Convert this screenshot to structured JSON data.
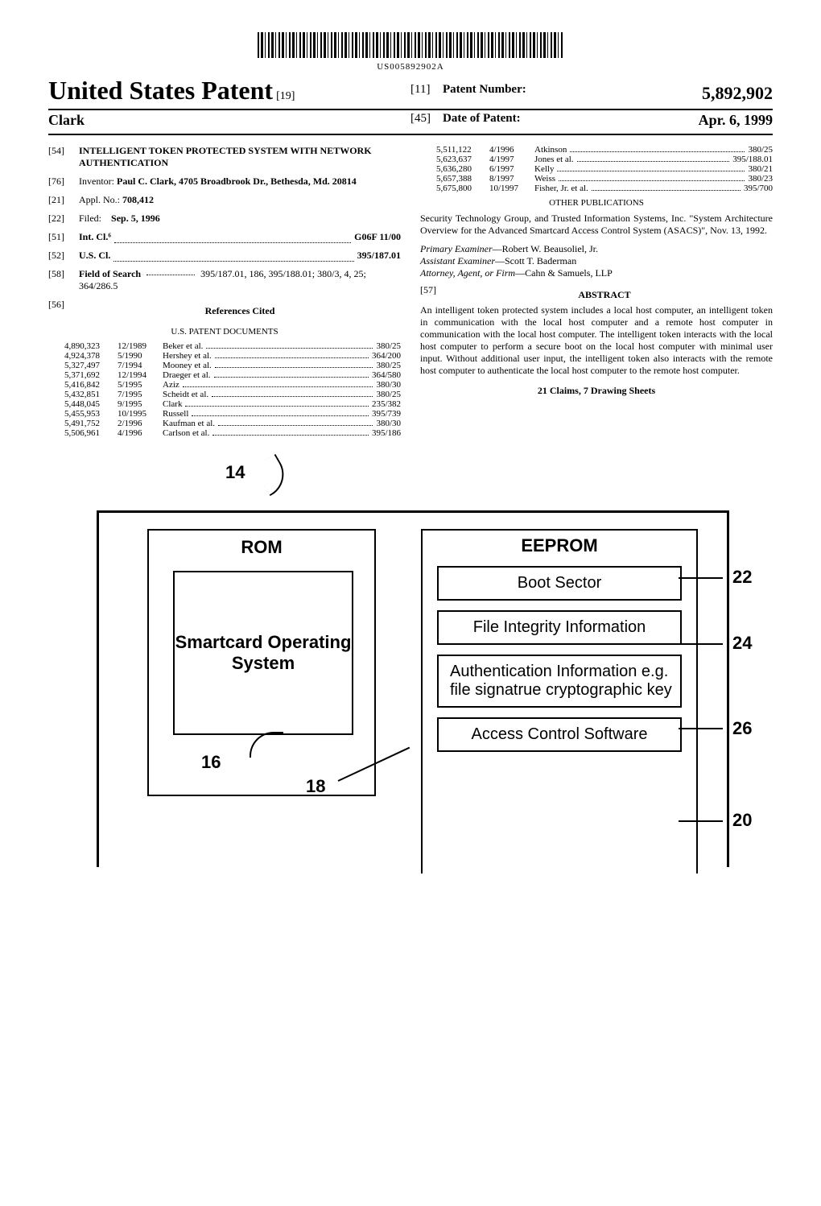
{
  "barcode_number": "US005892902A",
  "header": {
    "title": "United States Patent",
    "title_code": "[19]",
    "inventor_line": "Clark",
    "patent_number_label": "Patent Number:",
    "patent_number_code": "[11]",
    "patent_number": "5,892,902",
    "date_label": "Date of Patent:",
    "date_code": "[45]",
    "date": "Apr. 6, 1999"
  },
  "fields": {
    "f54": {
      "code": "[54]",
      "label": "",
      "value": "INTELLIGENT TOKEN PROTECTED SYSTEM WITH NETWORK AUTHENTICATION"
    },
    "f76": {
      "code": "[76]",
      "label": "Inventor:",
      "value": "Paul C. Clark, 4705 Broadbrook Dr., Bethesda, Md. 20814"
    },
    "f21": {
      "code": "[21]",
      "label": "Appl. No.:",
      "value": "708,412"
    },
    "f22": {
      "code": "[22]",
      "label": "Filed:",
      "value": "Sep. 5, 1996"
    },
    "f51": {
      "code": "[51]",
      "label": "Int. Cl.⁶",
      "value": "G06F 11/00"
    },
    "f52": {
      "code": "[52]",
      "label": "U.S. Cl.",
      "value": "395/187.01"
    },
    "f58": {
      "code": "[58]",
      "label": "Field of Search",
      "value": "395/187.01, 186, 395/188.01; 380/3, 4, 25; 364/286.5"
    },
    "f56": {
      "code": "[56]",
      "label": "References Cited"
    },
    "f57": {
      "code": "[57]",
      "label": "ABSTRACT"
    }
  },
  "us_patent_docs_label": "U.S. PATENT DOCUMENTS",
  "refs_left": [
    {
      "num": "4,890,323",
      "date": "12/1989",
      "auth": "Beker et al.",
      "cls": "380/25"
    },
    {
      "num": "4,924,378",
      "date": "5/1990",
      "auth": "Hershey et al.",
      "cls": "364/200"
    },
    {
      "num": "5,327,497",
      "date": "7/1994",
      "auth": "Mooney et al.",
      "cls": "380/25"
    },
    {
      "num": "5,371,692",
      "date": "12/1994",
      "auth": "Draeger et al.",
      "cls": "364/580"
    },
    {
      "num": "5,416,842",
      "date": "5/1995",
      "auth": "Aziz",
      "cls": "380/30"
    },
    {
      "num": "5,432,851",
      "date": "7/1995",
      "auth": "Scheidt et al.",
      "cls": "380/25"
    },
    {
      "num": "5,448,045",
      "date": "9/1995",
      "auth": "Clark",
      "cls": "235/382"
    },
    {
      "num": "5,455,953",
      "date": "10/1995",
      "auth": "Russell",
      "cls": "395/739"
    },
    {
      "num": "5,491,752",
      "date": "2/1996",
      "auth": "Kaufman et al.",
      "cls": "380/30"
    },
    {
      "num": "5,506,961",
      "date": "4/1996",
      "auth": "Carlson et al.",
      "cls": "395/186"
    }
  ],
  "refs_right": [
    {
      "num": "5,511,122",
      "date": "4/1996",
      "auth": "Atkinson",
      "cls": "380/25"
    },
    {
      "num": "5,623,637",
      "date": "4/1997",
      "auth": "Jones et al.",
      "cls": "395/188.01"
    },
    {
      "num": "5,636,280",
      "date": "6/1997",
      "auth": "Kelly",
      "cls": "380/21"
    },
    {
      "num": "5,657,388",
      "date": "8/1997",
      "auth": "Weiss",
      "cls": "380/23"
    },
    {
      "num": "5,675,800",
      "date": "10/1997",
      "auth": "Fisher, Jr. et al.",
      "cls": "395/700"
    }
  ],
  "other_pub_label": "OTHER PUBLICATIONS",
  "other_pub_text": "Security Technology Group, and Trusted Information Systems, Inc. \"System Architecture Overview for the Advanced Smartcard Access Control System (ASACS)\", Nov. 13, 1992.",
  "examiners": {
    "primary_label": "Primary Examiner",
    "primary": "Robert W. Beausoliel, Jr.",
    "assistant_label": "Assistant Examiner",
    "assistant": "Scott T. Baderman",
    "firm_label": "Attorney, Agent, or Firm",
    "firm": "Cahn & Samuels, LLP"
  },
  "abstract_text": "An intelligent token protected system includes a local host computer, an intelligent token in communication with the local host computer and a remote host computer in communication with the local host computer. The intelligent token interacts with the local host computer to perform a secure boot on the local host computer with minimal user input. Without additional user input, the intelligent token also interacts with the remote host computer to authenticate the local host computer to the remote host computer.",
  "claims_line": "21 Claims, 7 Drawing Sheets",
  "figure": {
    "label_14": "14",
    "label_16": "16",
    "label_18": "18",
    "label_20": "20",
    "label_22": "22",
    "label_24": "24",
    "label_26": "26",
    "rom": "ROM",
    "scos": "Smartcard Operating System",
    "eeprom": "EEPROM",
    "boot": "Boot Sector",
    "integrity": "File Integrity Information",
    "auth": "Authentication Information e.g. file signatrue cryptographic key",
    "acs": "Access Control Software"
  }
}
